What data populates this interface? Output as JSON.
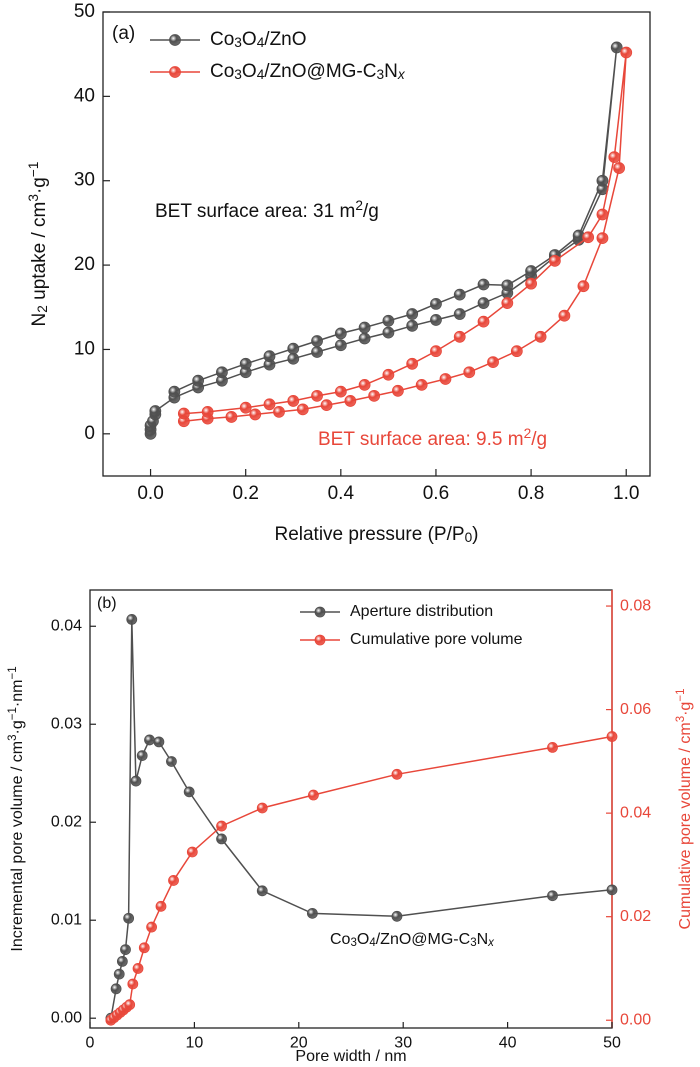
{
  "chart_data": [
    {
      "type": "line",
      "panel_label": "(a)",
      "x_label": "Relative pressure (P/P0)",
      "y_label": "N2 uptake / cm3·g−1",
      "annotations": [
        {
          "text": "BET surface area: 31 m2/g",
          "color": "#111111"
        },
        {
          "text": "BET surface area: 9.5 m2/g",
          "color": "#e8473a"
        }
      ],
      "xlim": [
        -0.1,
        1.05
      ],
      "xticks": [
        {
          "value": 0,
          "label": "0.0"
        },
        0.2,
        0.4,
        0.6,
        0.8,
        {
          "value": 1,
          "label": "1.0"
        }
      ],
      "ylim": [
        -5,
        50
      ],
      "yticks": [
        0,
        10,
        20,
        30,
        40,
        50
      ],
      "series": [
        {
          "name": "Co3O4/ZnO",
          "color": "#505050",
          "x": [
            0,
            0,
            0,
            0.005,
            0.01,
            0.01,
            0.05,
            0.1,
            0.15,
            0.2,
            0.25,
            0.3,
            0.35,
            0.4,
            0.45,
            0.5,
            0.55,
            0.6,
            0.65,
            0.7,
            0.75,
            0.8,
            0.85,
            0.9,
            0.95,
            0.98,
            0.95,
            0.9,
            0.85,
            0.8,
            0.75,
            0.7,
            0.65,
            0.6,
            0.55,
            0.5,
            0.45,
            0.4,
            0.35,
            0.3,
            0.25,
            0.2,
            0.15,
            0.1,
            0.05
          ],
          "values": [
            0,
            0.5,
            1,
            1.5,
            2.3,
            2.7,
            4.3,
            5.5,
            6.3,
            7.3,
            8.2,
            8.9,
            9.7,
            10.5,
            11.3,
            12,
            12.8,
            13.5,
            14.2,
            15.5,
            16.7,
            18.7,
            21,
            23,
            29,
            45.8,
            30,
            23.5,
            21.2,
            19.3,
            17.6,
            17.7,
            16.5,
            15.4,
            14.2,
            13.4,
            12.6,
            11.9,
            11,
            10.1,
            9.2,
            8.3,
            7.3,
            6.3,
            5
          ]
        },
        {
          "name": "Co3O4/ZnO@MG-C3Nx",
          "color": "#e8473a",
          "x": [
            0.07,
            0.12,
            0.17,
            0.22,
            0.27,
            0.32,
            0.37,
            0.42,
            0.47,
            0.52,
            0.57,
            0.62,
            0.67,
            0.72,
            0.77,
            0.82,
            0.87,
            0.91,
            0.95,
            0.985,
            1.0,
            0.975,
            0.95,
            0.92,
            0.85,
            0.8,
            0.75,
            0.7,
            0.65,
            0.6,
            0.55,
            0.5,
            0.45,
            0.4,
            0.35,
            0.3,
            0.25,
            0.2,
            0.12,
            0.07
          ],
          "values": [
            1.5,
            1.8,
            2,
            2.3,
            2.6,
            2.9,
            3.4,
            3.9,
            4.5,
            5.1,
            5.8,
            6.5,
            7.3,
            8.5,
            9.8,
            11.5,
            14,
            17.5,
            23.2,
            31.5,
            45.2,
            32.8,
            26,
            23.3,
            20.5,
            17.8,
            15.5,
            13.3,
            11.5,
            9.8,
            8.3,
            7,
            5.8,
            5,
            4.5,
            3.9,
            3.5,
            3.1,
            2.6,
            2.4
          ]
        }
      ]
    },
    {
      "type": "line",
      "panel_label": "(b)",
      "x_label": "Pore width / nm",
      "y_label": "Incremental pore volume / cm3·g−1·nm−1",
      "y2_label": "Cumulative pore volume / cm3·g−1",
      "y2_color": "#e8473a",
      "annotations": [
        {
          "text": "Co3O4/ZnO@MG-C3Nx",
          "color": "#111111"
        }
      ],
      "xlim": [
        0,
        50
      ],
      "xticks": [
        0,
        10,
        20,
        30,
        40,
        50
      ],
      "ylim": [
        -0.001,
        0.0437
      ],
      "yticks": [
        {
          "value": 0,
          "label": "0.00"
        },
        0.01,
        0.02,
        0.03,
        0.04
      ],
      "y2lim": [
        -0.0015,
        0.0831
      ],
      "y2ticks": [
        {
          "value": 0,
          "label": "0.00"
        },
        0.02,
        0.04,
        0.06,
        0.08
      ],
      "series": [
        {
          "name": "Aperture distribution",
          "color": "#505050",
          "x": [
            2,
            2.5,
            2.8,
            3.1,
            3.4,
            3.7,
            4.0,
            4.4,
            5.0,
            5.7,
            6.6,
            7.8,
            9.5,
            12.6,
            16.5,
            21.3,
            29.4,
            44.3,
            50
          ],
          "values": [
            0,
            0.003,
            0.0045,
            0.0058,
            0.007,
            0.0102,
            0.0407,
            0.0242,
            0.0268,
            0.0284,
            0.0282,
            0.0262,
            0.0231,
            0.0183,
            0.013,
            0.0107,
            0.0104,
            0.0125,
            0.0131
          ]
        },
        {
          "name": "Cumulative pore volume",
          "color": "#e8473a",
          "axis": "y2",
          "x": [
            2,
            2.3,
            2.6,
            2.9,
            3.2,
            3.5,
            3.8,
            4.1,
            4.6,
            5.2,
            5.9,
            6.8,
            8.0,
            9.8,
            12.6,
            16.5,
            21.4,
            29.4,
            44.3,
            50
          ],
          "values": [
            0,
            0.0005,
            0.001,
            0.0015,
            0.002,
            0.0025,
            0.003,
            0.007,
            0.01,
            0.014,
            0.018,
            0.022,
            0.027,
            0.0325,
            0.0375,
            0.041,
            0.0435,
            0.0475,
            0.0527,
            0.0548
          ]
        }
      ]
    }
  ]
}
